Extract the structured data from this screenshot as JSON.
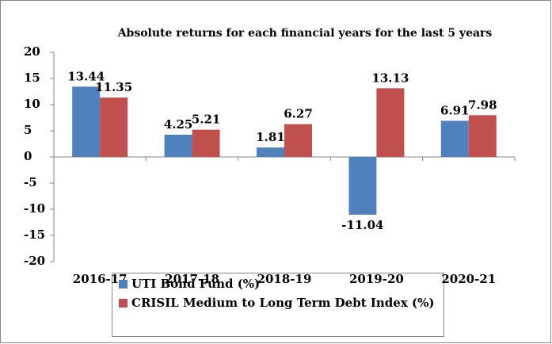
{
  "chart_data": {
    "type": "bar",
    "title": "Absolute returns for each financial years for the last 5 years",
    "categories": [
      "2016-17",
      "2017-18",
      "2018-19",
      "2019-20",
      "2020-21"
    ],
    "series": [
      {
        "name": "UTI Bond Fund (%)",
        "color": "#4f81bd",
        "values": [
          13.44,
          4.25,
          1.81,
          -11.04,
          6.91
        ]
      },
      {
        "name": "CRISIL Medium to Long Term Debt Index (%)",
        "color": "#c0504d",
        "values": [
          11.35,
          5.21,
          6.27,
          13.13,
          7.98
        ]
      }
    ],
    "ylim": [
      -20,
      20
    ],
    "yticks": [
      -20,
      -15,
      -10,
      -5,
      0,
      5,
      10,
      15,
      20
    ],
    "grid": false,
    "legend": "bottom"
  }
}
